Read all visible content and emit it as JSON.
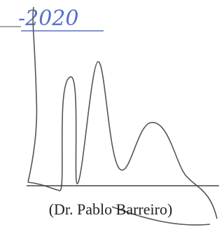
{
  "date": "-2020",
  "signature_name": "(Dr. Pablo Barreiro)"
}
